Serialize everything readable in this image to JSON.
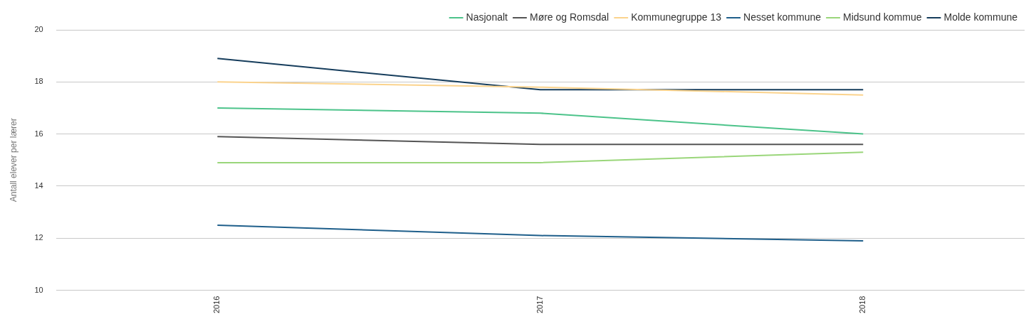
{
  "chart_data": {
    "type": "line",
    "ylabel": "Antall elever per lærer",
    "categories": [
      "2016",
      "2017",
      "2018"
    ],
    "series": [
      {
        "name": "Nasjonalt",
        "color": "#4cc38a",
        "values": [
          17.0,
          16.8,
          16.0
        ]
      },
      {
        "name": "Møre og Romsdal",
        "color": "#555555",
        "values": [
          15.9,
          15.6,
          15.6
        ]
      },
      {
        "name": "Kommunegruppe 13",
        "color": "#fbd38d",
        "values": [
          18.0,
          17.8,
          17.5
        ]
      },
      {
        "name": "Nesset kommune",
        "color": "#1f5f8b",
        "values": [
          12.5,
          12.1,
          11.9
        ]
      },
      {
        "name": "Midsund kommue",
        "color": "#9ad67a",
        "values": [
          14.9,
          14.9,
          15.3
        ]
      },
      {
        "name": "Molde kommune",
        "color": "#163d5c",
        "values": [
          18.9,
          17.7,
          17.7
        ]
      }
    ],
    "ylim": [
      10,
      20
    ],
    "yticks": [
      10,
      12,
      14,
      16,
      18,
      20
    ],
    "grid": "y",
    "legend": "top right",
    "marker": "none",
    "line_style": "solid"
  }
}
